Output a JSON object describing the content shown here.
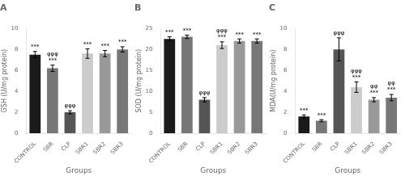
{
  "chart_data": [
    {
      "type": "bar",
      "title": "A",
      "xlabel": "Groups",
      "ylabel": "GSH (U/mg protein)",
      "categories": [
        "CONTROL",
        "SBR",
        "CLP",
        "SBR1",
        "SBR2",
        "SBR3"
      ],
      "values": [
        7.5,
        6.2,
        2.0,
        7.6,
        7.6,
        8.0
      ],
      "errors": [
        0.3,
        0.3,
        0.15,
        0.45,
        0.3,
        0.25
      ],
      "colors": [
        "#1a1a1a",
        "#777777",
        "#555555",
        "#cccccc",
        "#999999",
        "#777777"
      ],
      "ylim": [
        0,
        10
      ],
      "yticks": [
        0,
        2,
        4,
        6,
        8,
        10
      ],
      "grid": false,
      "annotations": [
        [
          "***"
        ],
        [
          "***",
          "φφφ"
        ],
        [
          "φφφ"
        ],
        [
          "***"
        ],
        [
          "***"
        ],
        [
          "***"
        ]
      ]
    },
    {
      "type": "bar",
      "title": "B",
      "xlabel": "Groups",
      "ylabel": "SOD (U/mg protein)",
      "categories": [
        "CONTROL",
        "SBR",
        "CLP",
        "SBR1",
        "SBR2",
        "SBR3"
      ],
      "values": [
        22.5,
        23.0,
        8.0,
        21.0,
        22.0,
        22.0
      ],
      "errors": [
        0.5,
        0.4,
        0.5,
        0.8,
        0.5,
        0.5
      ],
      "colors": [
        "#1a1a1a",
        "#777777",
        "#555555",
        "#cccccc",
        "#999999",
        "#777777"
      ],
      "ylim": [
        0,
        25
      ],
      "yticks": [
        0,
        5,
        10,
        15,
        20,
        25
      ],
      "grid": false,
      "annotations": [
        [
          "***"
        ],
        [
          "***"
        ],
        [
          "φφφ"
        ],
        [
          "***",
          "φφφ"
        ],
        [
          "***"
        ],
        [
          "***"
        ]
      ]
    },
    {
      "type": "bar",
      "title": "C",
      "xlabel": "Groups",
      "ylabel": "MDA(U/mg protein)",
      "categories": [
        "CONTROL",
        "SBR",
        "CLP",
        "SBR1",
        "SBR2",
        "SBR3"
      ],
      "values": [
        1.6,
        1.2,
        8.0,
        4.4,
        3.2,
        3.4
      ],
      "errors": [
        0.15,
        0.1,
        1.1,
        0.5,
        0.2,
        0.3
      ],
      "colors": [
        "#1a1a1a",
        "#777777",
        "#555555",
        "#cccccc",
        "#999999",
        "#777777"
      ],
      "ylim": [
        0,
        10
      ],
      "yticks": [
        0,
        2,
        4,
        6,
        8,
        10
      ],
      "grid": false,
      "annotations": [
        [
          "***"
        ],
        [
          "***"
        ],
        [
          "φφφ"
        ],
        [
          "***",
          "φφφ"
        ],
        [
          "***",
          "φφ"
        ],
        [
          "***",
          "φφ"
        ]
      ]
    }
  ]
}
